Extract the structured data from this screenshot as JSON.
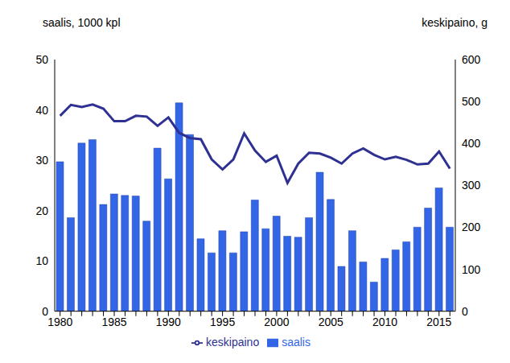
{
  "chart_data": {
    "type": "bar",
    "ylabel": "saalis, 1000 kpl",
    "y2label": "keskipaino, g",
    "categories": [
      "1980",
      null,
      null,
      null,
      null,
      "1985",
      null,
      null,
      null,
      null,
      "1990",
      null,
      null,
      null,
      null,
      "1995",
      null,
      null,
      null,
      null,
      "2000",
      null,
      null,
      null,
      null,
      "2005",
      null,
      null,
      null,
      null,
      "2010",
      null,
      null,
      null,
      null,
      "2015",
      null
    ],
    "series": [
      {
        "name": "saalis",
        "type": "bar",
        "color": "#3366e6",
        "values": [
          29.7,
          18.6,
          33.4,
          34.1,
          21.2,
          23.3,
          23.0,
          22.9,
          17.9,
          32.4,
          26.3,
          41.4,
          35.1,
          14.4,
          11.6,
          16.0,
          11.6,
          15.8,
          22.1,
          16.4,
          18.9,
          14.9,
          14.7,
          18.6,
          27.6,
          22.2,
          8.9,
          16.0,
          9.8,
          5.8,
          10.5,
          12.2,
          13.8,
          16.7,
          20.5,
          24.5,
          16.7
        ]
      },
      {
        "name": "keskipaino",
        "type": "line",
        "axis": "y2",
        "color": "#2e3192",
        "values": [
          466,
          492,
          487,
          493,
          483,
          453,
          453,
          466,
          464,
          442,
          462,
          425,
          413,
          410,
          362,
          338,
          362,
          424,
          383,
          356,
          371,
          306,
          352,
          378,
          376,
          366,
          352,
          376,
          388,
          373,
          362,
          368,
          361,
          350,
          352,
          381,
          340
        ]
      }
    ],
    "ylim": [
      0,
      50
    ],
    "yticks": [
      0,
      10,
      20,
      30,
      40,
      50
    ],
    "y2lim": [
      0,
      600
    ],
    "y2ticks": [
      0,
      100,
      200,
      300,
      400,
      500,
      600
    ],
    "grid": false
  }
}
